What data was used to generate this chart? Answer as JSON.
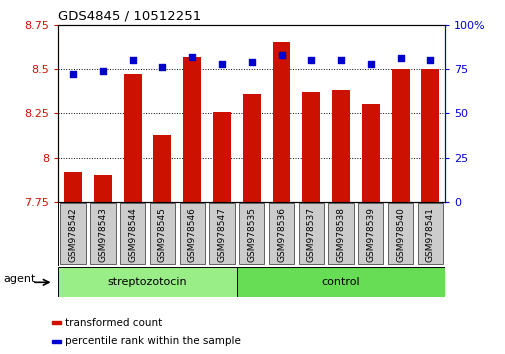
{
  "title": "GDS4845 / 10512251",
  "samples": [
    "GSM978542",
    "GSM978543",
    "GSM978544",
    "GSM978545",
    "GSM978546",
    "GSM978547",
    "GSM978535",
    "GSM978536",
    "GSM978537",
    "GSM978538",
    "GSM978539",
    "GSM978540",
    "GSM978541"
  ],
  "red_values": [
    7.92,
    7.9,
    8.47,
    8.13,
    8.57,
    8.26,
    8.36,
    8.65,
    8.37,
    8.38,
    8.3,
    8.5,
    8.5
  ],
  "blue_values": [
    72,
    74,
    80,
    76,
    82,
    78,
    79,
    83,
    80,
    80,
    78,
    81,
    80
  ],
  "ylim_left": [
    7.75,
    8.75
  ],
  "ylim_right": [
    0,
    100
  ],
  "yticks_left": [
    7.75,
    8.0,
    8.25,
    8.5,
    8.75
  ],
  "yticks_right": [
    0,
    25,
    50,
    75,
    100
  ],
  "ytick_labels_left": [
    "7.75",
    "8",
    "8.25",
    "8.5",
    "8.75"
  ],
  "ytick_labels_right": [
    "0",
    "25",
    "50",
    "75",
    "100%"
  ],
  "bar_color": "#cc1100",
  "dot_color": "#0000cc",
  "strep_color": "#99ee88",
  "control_color": "#66dd55",
  "background_color": "#ffffff",
  "bar_width": 0.6,
  "n_strep": 6,
  "n_control": 7,
  "agent_label": "agent",
  "group_labels": [
    "streptozotocin",
    "control"
  ],
  "legend_items": [
    {
      "label": "transformed count",
      "color": "#cc1100"
    },
    {
      "label": "percentile rank within the sample",
      "color": "#0000cc"
    }
  ]
}
